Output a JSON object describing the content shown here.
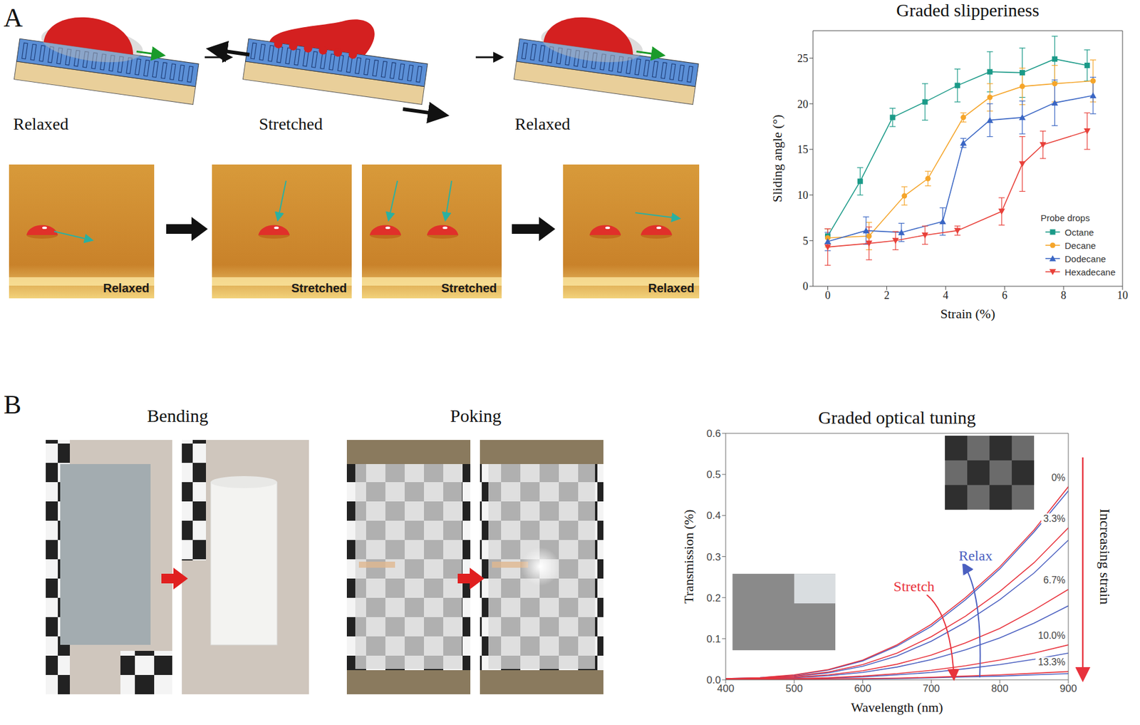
{
  "figure": {
    "panels": [
      {
        "letter": "A",
        "schematic_labels": [
          "Relaxed",
          "Stretched",
          "Relaxed"
        ],
        "photo_labels": [
          "Relaxed",
          "Stretched",
          "Stretched",
          "Relaxed"
        ]
      },
      {
        "letter": "B",
        "photo_titles": [
          "Bending",
          "Poking"
        ]
      }
    ]
  },
  "chart_data": [
    {
      "type": "line",
      "title": "Graded slipperiness",
      "x_label": "Strain (%)",
      "y_label": "Sliding angle (°)",
      "xlim": [
        -0.5,
        10
      ],
      "xticks": [
        0,
        2,
        4,
        6,
        8,
        10
      ],
      "ylim": [
        0,
        28
      ],
      "yticks": [
        0,
        5,
        10,
        15,
        20,
        25
      ],
      "legend": "lower right",
      "legend_title": "Probe drops",
      "series": [
        {
          "name": "Octane",
          "color": "#1b9a88",
          "marker": "square",
          "x": [
            0,
            1.1,
            2.2,
            3.3,
            4.4,
            5.5,
            6.6,
            7.7,
            8.8
          ],
          "values": [
            5.5,
            11.5,
            18.5,
            20.2,
            22,
            23.5,
            23.4,
            24.9,
            24.2
          ],
          "errors": [
            0.8,
            1.5,
            1,
            2,
            1.8,
            2.2,
            2.7,
            2.5,
            1.7
          ]
        },
        {
          "name": "Decane",
          "color": "#f5a52a",
          "marker": "circle",
          "x": [
            0,
            1.4,
            2.6,
            3.4,
            4.6,
            5.5,
            6.6,
            7.7,
            9
          ],
          "values": [
            5.3,
            5.5,
            9.9,
            11.8,
            18.5,
            20.7,
            21.9,
            22.2,
            22.5
          ],
          "errors": [
            1,
            1.5,
            1,
            0.8,
            0.5,
            1.5,
            2,
            2,
            2.3
          ]
        },
        {
          "name": "Dodecane",
          "color": "#3a66c4",
          "marker": "triangle",
          "x": [
            0,
            1.3,
            2.5,
            3.9,
            4.6,
            5.5,
            6.6,
            7.7,
            9
          ],
          "values": [
            4.9,
            6.1,
            5.9,
            7.1,
            15.7,
            18.2,
            18.5,
            20.1,
            20.9
          ],
          "errors": [
            1,
            1.5,
            1,
            1.5,
            0.5,
            1.8,
            1.8,
            2.5,
            2
          ]
        },
        {
          "name": "Hexadecane",
          "color": "#e8413a",
          "marker": "triangle-down",
          "x": [
            0,
            1.4,
            2.3,
            3.3,
            4.4,
            5.9,
            6.6,
            7.3,
            8.8
          ],
          "values": [
            4.3,
            4.7,
            5,
            5.6,
            6.1,
            8.2,
            13.4,
            15.5,
            17
          ],
          "errors": [
            2,
            1.8,
            1,
            1,
            0.5,
            1.5,
            3,
            1.5,
            2
          ]
        }
      ]
    },
    {
      "type": "line",
      "title": "Graded optical tuning",
      "x_label": "Wavelength (nm)",
      "y_label": "Transmission (%)",
      "xlim": [
        400,
        900
      ],
      "xticks": [
        400,
        500,
        600,
        700,
        800,
        900
      ],
      "ylim": [
        0,
        0.6
      ],
      "yticks": [
        {
          "value": 0,
          "label": "0.0"
        },
        0.1,
        0.2,
        0.3,
        0.4,
        0.5,
        0.6
      ],
      "annotations": [
        "Increasing strain"
      ],
      "x": [
        400,
        450,
        500,
        550,
        600,
        650,
        700,
        750,
        800,
        850,
        900
      ],
      "series": [
        {
          "name": "Relax",
          "color": "#4a5fc0",
          "values": [
            0.003,
            0.005,
            0.011,
            0.024,
            0.046,
            0.082,
            0.13,
            0.195,
            0.27,
            0.36,
            0.46
          ]
        },
        {
          "name": "Relax",
          "color": "#4a5fc0",
          "values": [
            0.002,
            0.004,
            0.008,
            0.017,
            0.033,
            0.058,
            0.094,
            0.14,
            0.195,
            0.26,
            0.34
          ]
        },
        {
          "name": "Relax",
          "color": "#4a5fc0",
          "values": [
            0.002,
            0.003,
            0.005,
            0.01,
            0.018,
            0.031,
            0.049,
            0.073,
            0.102,
            0.138,
            0.18
          ]
        },
        {
          "name": "Relax",
          "color": "#4a5fc0",
          "values": [
            0.001,
            0.002,
            0.003,
            0.004,
            0.007,
            0.012,
            0.018,
            0.027,
            0.037,
            0.05,
            0.065
          ]
        },
        {
          "name": "Relax",
          "color": "#4a5fc0",
          "values": [
            0.001,
            0.001,
            0.001,
            0.002,
            0.002,
            0.003,
            0.005,
            0.007,
            0.009,
            0.012,
            0.015
          ]
        },
        {
          "name": "Stretch",
          "label": "0%",
          "color": "#e8323c",
          "values": [
            0.003,
            0.005,
            0.012,
            0.025,
            0.048,
            0.085,
            0.135,
            0.2,
            0.275,
            0.365,
            0.47
          ]
        },
        {
          "name": "Stretch",
          "label": "3.3%",
          "color": "#e8323c",
          "values": [
            0.003,
            0.004,
            0.009,
            0.019,
            0.037,
            0.065,
            0.105,
            0.155,
            0.215,
            0.285,
            0.37
          ]
        },
        {
          "name": "Stretch",
          "label": "6.7%",
          "color": "#e8323c",
          "values": [
            0.002,
            0.003,
            0.006,
            0.012,
            0.022,
            0.038,
            0.06,
            0.09,
            0.125,
            0.17,
            0.22
          ]
        },
        {
          "name": "Stretch",
          "label": "10.0%",
          "color": "#e8323c",
          "values": [
            0.001,
            0.002,
            0.003,
            0.005,
            0.009,
            0.015,
            0.023,
            0.034,
            0.048,
            0.065,
            0.085
          ]
        },
        {
          "name": "Stretch",
          "label": "13.3%",
          "color": "#e8323c",
          "values": [
            0.001,
            0.001,
            0.001,
            0.002,
            0.003,
            0.004,
            0.006,
            0.009,
            0.012,
            0.016,
            0.02
          ]
        }
      ]
    }
  ]
}
